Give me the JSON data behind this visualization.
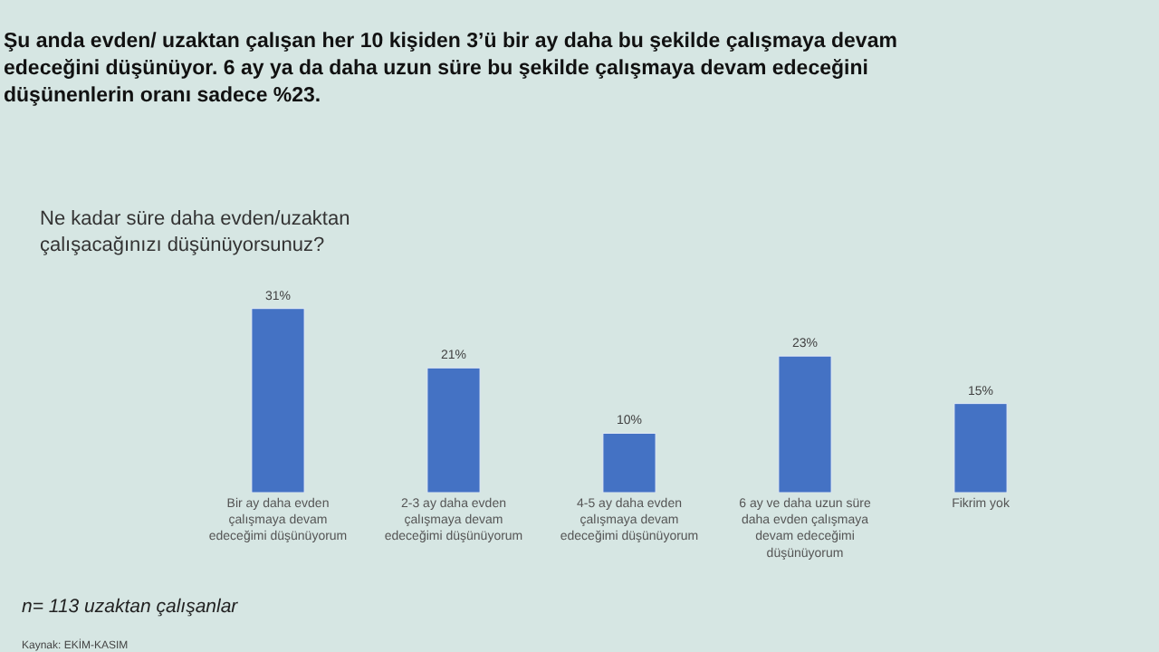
{
  "chart_data": {
    "type": "bar",
    "title": "Şu anda evden/ uzaktan çalışan her 10 kişiden 3’ü bir ay daha bu şekilde çalışmaya devam edeceğini düşünüyor. 6 ay ya da daha uzun süre bu şekilde çalışmaya devam edeceğini düşünenlerin oranı sadece %23.",
    "subtitle": "Ne kadar süre daha evden/uzaktan çalışacağınızı düşünüyorsunuz?",
    "categories": [
      "Bir ay daha evden çalışmaya devam edeceğimi düşünüyorum",
      "2-3 ay daha evden çalışmaya devam edeceğimi düşünüyorum",
      "4-5 ay daha evden çalışmaya devam edeceğimi düşünüyorum",
      "6 ay ve daha uzun süre daha evden çalışmaya devam edeceğimi düşünüyorum",
      "Fikrim yok"
    ],
    "values": [
      31,
      21,
      10,
      23,
      15
    ],
    "value_labels": [
      "31%",
      "21%",
      "10%",
      "23%",
      "15%"
    ],
    "color": "#4472c4",
    "grid": false,
    "legend": false,
    "annotations": [
      "n= 113 uzaktan çalışanlar",
      "Kaynak: EKİM-KASIM"
    ]
  }
}
